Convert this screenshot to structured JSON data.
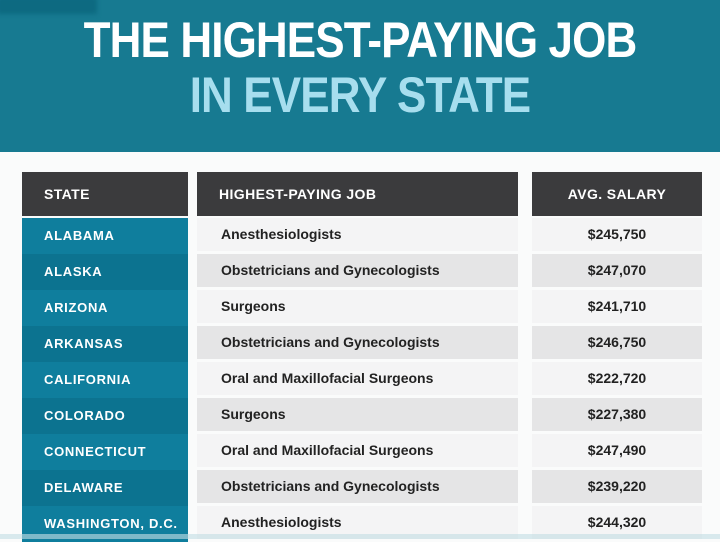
{
  "header": {
    "title_line1": "THE HIGHEST-PAYING JOB",
    "title_line2": "IN EVERY STATE"
  },
  "chart_data": {
    "type": "table",
    "title": "THE HIGHEST-PAYING JOB IN EVERY STATE",
    "columns": [
      "STATE",
      "HIGHEST-PAYING JOB",
      "AVG. SALARY"
    ],
    "rows": [
      [
        "ALABAMA",
        "Anesthesiologists",
        "$245,750"
      ],
      [
        "ALASKA",
        "Obstetricians and Gynecologists",
        "$247,070"
      ],
      [
        "ARIZONA",
        "Surgeons",
        "$241,710"
      ],
      [
        "ARKANSAS",
        "Obstetricians and Gynecologists",
        "$246,750"
      ],
      [
        "CALIFORNIA",
        "Oral and Maxillofacial Surgeons",
        "$222,720"
      ],
      [
        "COLORADO",
        "Surgeons",
        "$227,380"
      ],
      [
        "CONNECTICUT",
        "Oral and Maxillofacial Surgeons",
        "$247,490"
      ],
      [
        "DELAWARE",
        "Obstetricians and Gynecologists",
        "$239,220"
      ],
      [
        "WASHINGTON, D.C.",
        "Anesthesiologists",
        "$244,320"
      ]
    ],
    "layout_hints": {
      "row_shading": "alternating light/dark gray; state column alternating teal",
      "header_style": "dark charcoal bar with white labels"
    }
  },
  "colors": {
    "hero_background": "#177A91",
    "hero_corner": "#0D6A81",
    "title_cyan": "#A7DEEE",
    "header_bg": "#3B3B3D",
    "row_light": "#F4F4F5",
    "row_dark": "#E5E5E6",
    "state_light": "#0F7E9D",
    "state_dark": "#0C7390",
    "page_bg": "#FAFBFB",
    "text_dark": "#222222",
    "bottom_strip": "#C4DDE4"
  }
}
